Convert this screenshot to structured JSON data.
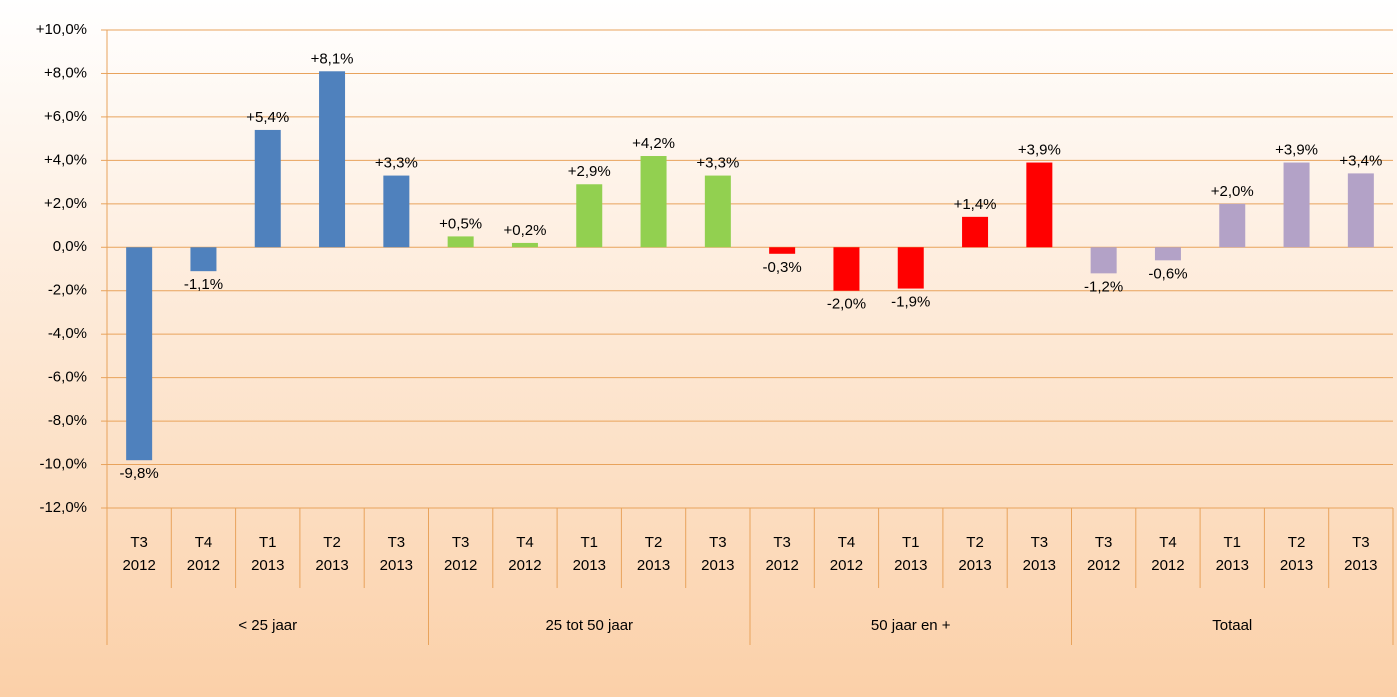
{
  "chart_data": {
    "type": "grouped-bar",
    "groups": [
      {
        "name": "< 25 jaar",
        "color": "#4f81bd",
        "categories": [
          [
            "T3",
            "2012"
          ],
          [
            "T4",
            "2012"
          ],
          [
            "T1",
            "2013"
          ],
          [
            "T2",
            "2013"
          ],
          [
            "T3",
            "2013"
          ]
        ],
        "values": [
          -9.8,
          -1.1,
          5.4,
          8.1,
          3.3
        ],
        "value_labels": [
          "-9,8%",
          "-1,1%",
          "+5,4%",
          "+8,1%",
          "+3,3%"
        ]
      },
      {
        "name": "25 tot 50 jaar",
        "color": "#92d050",
        "categories": [
          [
            "T3",
            "2012"
          ],
          [
            "T4",
            "2012"
          ],
          [
            "T1",
            "2013"
          ],
          [
            "T2",
            "2013"
          ],
          [
            "T3",
            "2013"
          ]
        ],
        "values": [
          0.5,
          0.2,
          2.9,
          4.2,
          3.3
        ],
        "value_labels": [
          "+0,5%",
          "+0,2%",
          "+2,9%",
          "+4,2%",
          "+3,3%"
        ]
      },
      {
        "name": "50 jaar en +",
        "color": "#ff0000",
        "categories": [
          [
            "T3",
            "2012"
          ],
          [
            "T4",
            "2012"
          ],
          [
            "T1",
            "2013"
          ],
          [
            "T2",
            "2013"
          ],
          [
            "T3",
            "2013"
          ]
        ],
        "values": [
          -0.3,
          -2.0,
          -1.9,
          1.4,
          3.9
        ],
        "value_labels": [
          "-0,3%",
          "-2,0%",
          "-1,9%",
          "+1,4%",
          "+3,9%"
        ]
      },
      {
        "name": "Totaal",
        "color": "#b3a2c7",
        "categories": [
          [
            "T3",
            "2012"
          ],
          [
            "T4",
            "2012"
          ],
          [
            "T1",
            "2013"
          ],
          [
            "T2",
            "2013"
          ],
          [
            "T3",
            "2013"
          ]
        ],
        "values": [
          -1.2,
          -0.6,
          2.0,
          3.9,
          3.4
        ],
        "value_labels": [
          "-1,2%",
          "-0,6%",
          "+2,0%",
          "+3,9%",
          "+3,4%"
        ]
      }
    ],
    "ylim": [
      -12,
      10
    ],
    "yticks": [
      {
        "value": -12,
        "label": "-12,0%"
      },
      {
        "value": -10,
        "label": "-10,0%"
      },
      {
        "value": -8,
        "label": "-8,0%"
      },
      {
        "value": -6,
        "label": "-6,0%"
      },
      {
        "value": -4,
        "label": "-4,0%"
      },
      {
        "value": -2,
        "label": "-2,0%"
      },
      {
        "value": 0,
        "label": "0,0%"
      },
      {
        "value": 2,
        "label": "+2,0%"
      },
      {
        "value": 4,
        "label": "+4,0%"
      },
      {
        "value": 6,
        "label": "+6,0%"
      },
      {
        "value": 8,
        "label": "+8,0%"
      },
      {
        "value": 10,
        "label": "+10,0%"
      }
    ],
    "grid": true
  }
}
